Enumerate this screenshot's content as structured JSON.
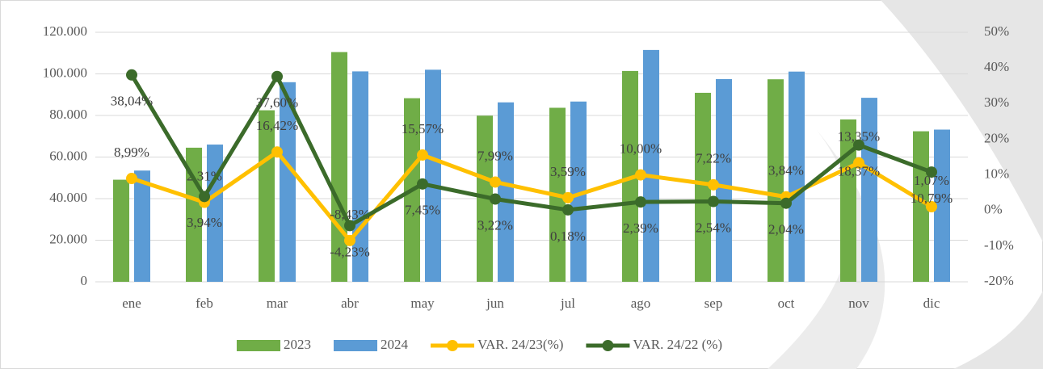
{
  "chart_data": {
    "type": "bar_line",
    "categories": [
      "ene",
      "feb",
      "mar",
      "abr",
      "may",
      "jun",
      "jul",
      "ago",
      "sep",
      "oct",
      "nov",
      "dic"
    ],
    "series": [
      {
        "name": "2023",
        "type": "bar",
        "color": "#70ad47",
        "values": [
          49100,
          64500,
          82500,
          110500,
          88300,
          79900,
          83700,
          101400,
          90900,
          97400,
          78100,
          72400
        ]
      },
      {
        "name": "2024",
        "type": "bar",
        "color": "#5b9bd5",
        "values": [
          53500,
          66000,
          96000,
          101200,
          102000,
          86300,
          86700,
          111500,
          97500,
          101100,
          88500,
          73200
        ]
      },
      {
        "name": "VAR. 24/23(%)",
        "type": "line",
        "axis": "y2",
        "color": "#ffc000",
        "values": [
          8.99,
          2.31,
          16.42,
          -8.43,
          15.57,
          7.99,
          3.59,
          10.0,
          7.22,
          3.84,
          13.35,
          1.07
        ],
        "value_labels": [
          "8,99%",
          "2,31%",
          "16,42%",
          "-8,43%",
          "15,57%",
          "7,99%",
          "3,59%",
          "10,00%",
          "7,22%",
          "3,84%",
          "13,35%",
          "1,07%"
        ]
      },
      {
        "name": "VAR. 24/22 (%)",
        "type": "line",
        "axis": "y2",
        "color": "#3b6b2a",
        "values": [
          38.04,
          3.94,
          37.6,
          -4.23,
          7.45,
          3.22,
          0.18,
          2.39,
          2.54,
          2.04,
          18.37,
          10.79
        ],
        "value_labels": [
          "38,04%",
          "3,94%",
          "37,60%",
          "-4,23%",
          "7,45%",
          "3,22%",
          "0,18%",
          "2,39%",
          "2,54%",
          "2,04%",
          "18,37%",
          "10,79%"
        ]
      }
    ],
    "ylim": [
      0,
      120000
    ],
    "yticks": [
      0,
      {
        "value": 20000,
        "label": "20.000"
      },
      {
        "value": 40000,
        "label": "40.000"
      },
      {
        "value": 60000,
        "label": "60.000"
      },
      {
        "value": 80000,
        "label": "80.000"
      },
      {
        "value": 100000,
        "label": "100.000"
      },
      {
        "value": 120000,
        "label": "120.000"
      }
    ],
    "y2lim": [
      -20,
      50
    ],
    "y2ticks": [
      {
        "value": -20,
        "label": "-20%"
      },
      {
        "value": -10,
        "label": "-10%"
      },
      {
        "value": 0,
        "label": "0%"
      },
      {
        "value": 10,
        "label": "10%"
      },
      {
        "value": 20,
        "label": "20%"
      },
      {
        "value": 30,
        "label": "30%"
      },
      {
        "value": 40,
        "label": "40%"
      },
      {
        "value": 50,
        "label": "50%"
      }
    ],
    "grid": true,
    "legend": "bottom"
  }
}
